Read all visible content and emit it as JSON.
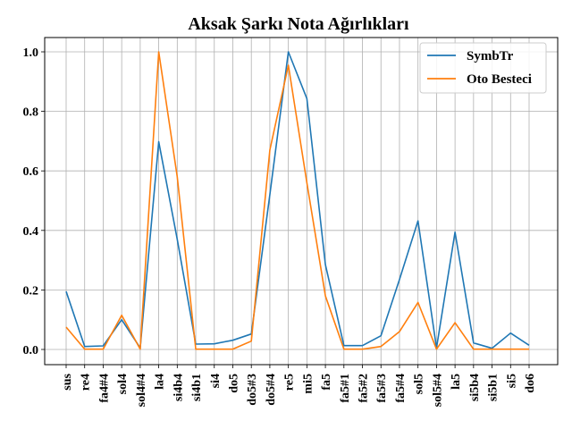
{
  "chart_data": {
    "type": "line",
    "title": "Aksak Şarkı Nota Ağırlıkları",
    "xlabel": "",
    "ylabel": "",
    "categories": [
      "sus",
      "re4",
      "fa4#4",
      "sol4",
      "sol4#4",
      "la4",
      "si4b4",
      "si4b1",
      "si4",
      "do5",
      "do5#3",
      "do5#4",
      "re5",
      "mi5",
      "fa5",
      "fa5#1",
      "fa5#2",
      "fa5#3",
      "fa5#4",
      "sol5",
      "sol5#4",
      "la5",
      "si5b4",
      "si5b1",
      "si5",
      "do6"
    ],
    "ylim": [
      -0.05,
      1.05
    ],
    "yticks": [
      0.0,
      0.2,
      0.4,
      0.6,
      0.8,
      1.0
    ],
    "ytick_labels": [
      "0.0",
      "0.2",
      "0.4",
      "0.6",
      "0.8",
      "1.0"
    ],
    "grid": true,
    "legend_position": "top-right",
    "series": [
      {
        "name": "SymbTr",
        "color": "#1f77b4",
        "values": [
          0.195,
          0.01,
          0.012,
          0.1,
          0.005,
          0.698,
          0.37,
          0.018,
          0.019,
          0.031,
          0.052,
          0.52,
          1.0,
          0.843,
          0.285,
          0.013,
          0.013,
          0.046,
          0.235,
          0.432,
          0.005,
          0.394,
          0.022,
          0.004,
          0.055,
          0.014
        ]
      },
      {
        "name": "Oto Besteci",
        "color": "#ff7f0e",
        "values": [
          0.075,
          0.001,
          0.001,
          0.115,
          0.001,
          1.0,
          0.58,
          0.001,
          0.001,
          0.001,
          0.028,
          0.67,
          0.955,
          0.56,
          0.18,
          0.001,
          0.001,
          0.01,
          0.06,
          0.158,
          0.001,
          0.09,
          0.001,
          0.001,
          0.001,
          0.001
        ]
      }
    ]
  }
}
